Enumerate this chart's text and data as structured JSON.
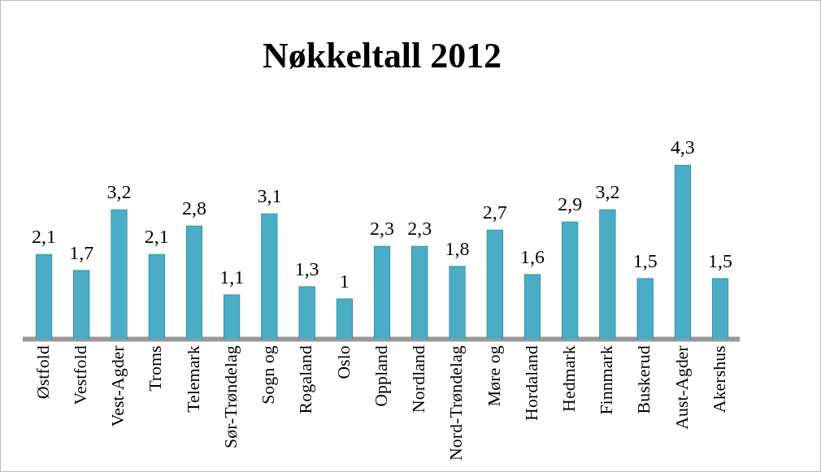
{
  "chart_data": {
    "type": "bar",
    "title": "Nøkkeltall 2012",
    "categories": [
      "Østfold",
      "Vestfold",
      "Vest-Agder",
      "Troms",
      "Telemark",
      "Sør-Trøndelag",
      "Sogn og",
      "Rogaland",
      "Oslo",
      "Oppland",
      "Nordland",
      "Nord-Trøndelag",
      "Møre og",
      "Hordaland",
      "Hedmark",
      "Finnmark",
      "Buskerud",
      "Aust-Agder",
      "Akershus"
    ],
    "values": [
      2.1,
      1.7,
      3.2,
      2.1,
      2.8,
      1.1,
      3.1,
      1.3,
      1,
      2.3,
      2.3,
      1.8,
      2.7,
      1.6,
      2.9,
      3.2,
      1.5,
      4.3,
      1.5
    ],
    "value_labels": [
      "2,1",
      "1,7",
      "3,2",
      "2,1",
      "2,8",
      "1,1",
      "3,1",
      "1,3",
      "1",
      "2,3",
      "2,3",
      "1,8",
      "2,7",
      "1,6",
      "2,9",
      "3,2",
      "1,5",
      "4,3",
      "1,5"
    ],
    "color": "#4bacc6",
    "grid": false,
    "legend": false,
    "tick_labels": "x"
  }
}
